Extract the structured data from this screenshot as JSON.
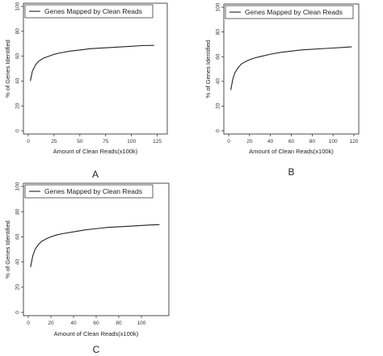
{
  "chart_data": [
    {
      "type": "line",
      "panel_label": "A",
      "legend": "Genes Mapped by Clean Reads",
      "xlabel": "Amount of Clean Reads(x100k)",
      "ylabel": "% of Genes Identified",
      "xlim": [
        0,
        130
      ],
      "ylim": [
        0,
        100
      ],
      "xticks": [
        0,
        25,
        50,
        75,
        100,
        125
      ],
      "yticks": [
        0,
        20,
        40,
        60,
        80,
        100
      ],
      "series": [
        {
          "name": "Genes Mapped by Clean Reads",
          "x": [
            2,
            4,
            7,
            10,
            15,
            20,
            25,
            30,
            40,
            50,
            60,
            70,
            80,
            90,
            100,
            110,
            122
          ],
          "y": [
            40,
            48,
            53,
            56,
            58.5,
            60,
            61.5,
            62.5,
            64,
            65,
            66,
            66.5,
            67,
            67.5,
            68,
            68.5,
            68.7
          ]
        }
      ]
    },
    {
      "type": "line",
      "panel_label": "B",
      "legend": "Genes Mapped by Clean Reads",
      "xlabel": "Amount of Clean Reads(x100k)",
      "ylabel": "% of Genes Identified",
      "xlim": [
        0,
        120
      ],
      "ylim": [
        0,
        100
      ],
      "xticks": [
        0,
        20,
        40,
        60,
        80,
        100,
        120
      ],
      "yticks": [
        0,
        20,
        40,
        60,
        80,
        100
      ],
      "series": [
        {
          "name": "Genes Mapped by Clean Reads",
          "x": [
            2,
            4,
            6,
            9,
            12,
            16,
            20,
            25,
            30,
            40,
            50,
            60,
            70,
            80,
            90,
            100,
            110,
            118
          ],
          "y": [
            33,
            42,
            47,
            51,
            54,
            56,
            57.5,
            59,
            60,
            62,
            63.5,
            64.5,
            65.5,
            66,
            66.5,
            67,
            67.5,
            68
          ]
        }
      ]
    },
    {
      "type": "line",
      "panel_label": "C",
      "legend": "Genes Mapped by Clean Reads",
      "xlabel": "Amount of Clean Reads(x100k)",
      "ylabel": "% of Genes Identified",
      "xlim": [
        0,
        120
      ],
      "ylim": [
        0,
        100
      ],
      "xticks": [
        0,
        20,
        40,
        60,
        80,
        100
      ],
      "yticks": [
        0,
        20,
        40,
        60,
        80,
        100
      ],
      "series": [
        {
          "name": "Genes Mapped by Clean Reads",
          "x": [
            2,
            4,
            6,
            9,
            12,
            16,
            20,
            25,
            30,
            40,
            50,
            60,
            70,
            80,
            90,
            100,
            110,
            116
          ],
          "y": [
            36,
            45,
            50,
            54,
            56.5,
            58.5,
            60,
            61.5,
            62.5,
            64,
            65.5,
            66.5,
            67.5,
            68,
            68.5,
            69,
            69.5,
            69.7
          ]
        }
      ]
    }
  ]
}
